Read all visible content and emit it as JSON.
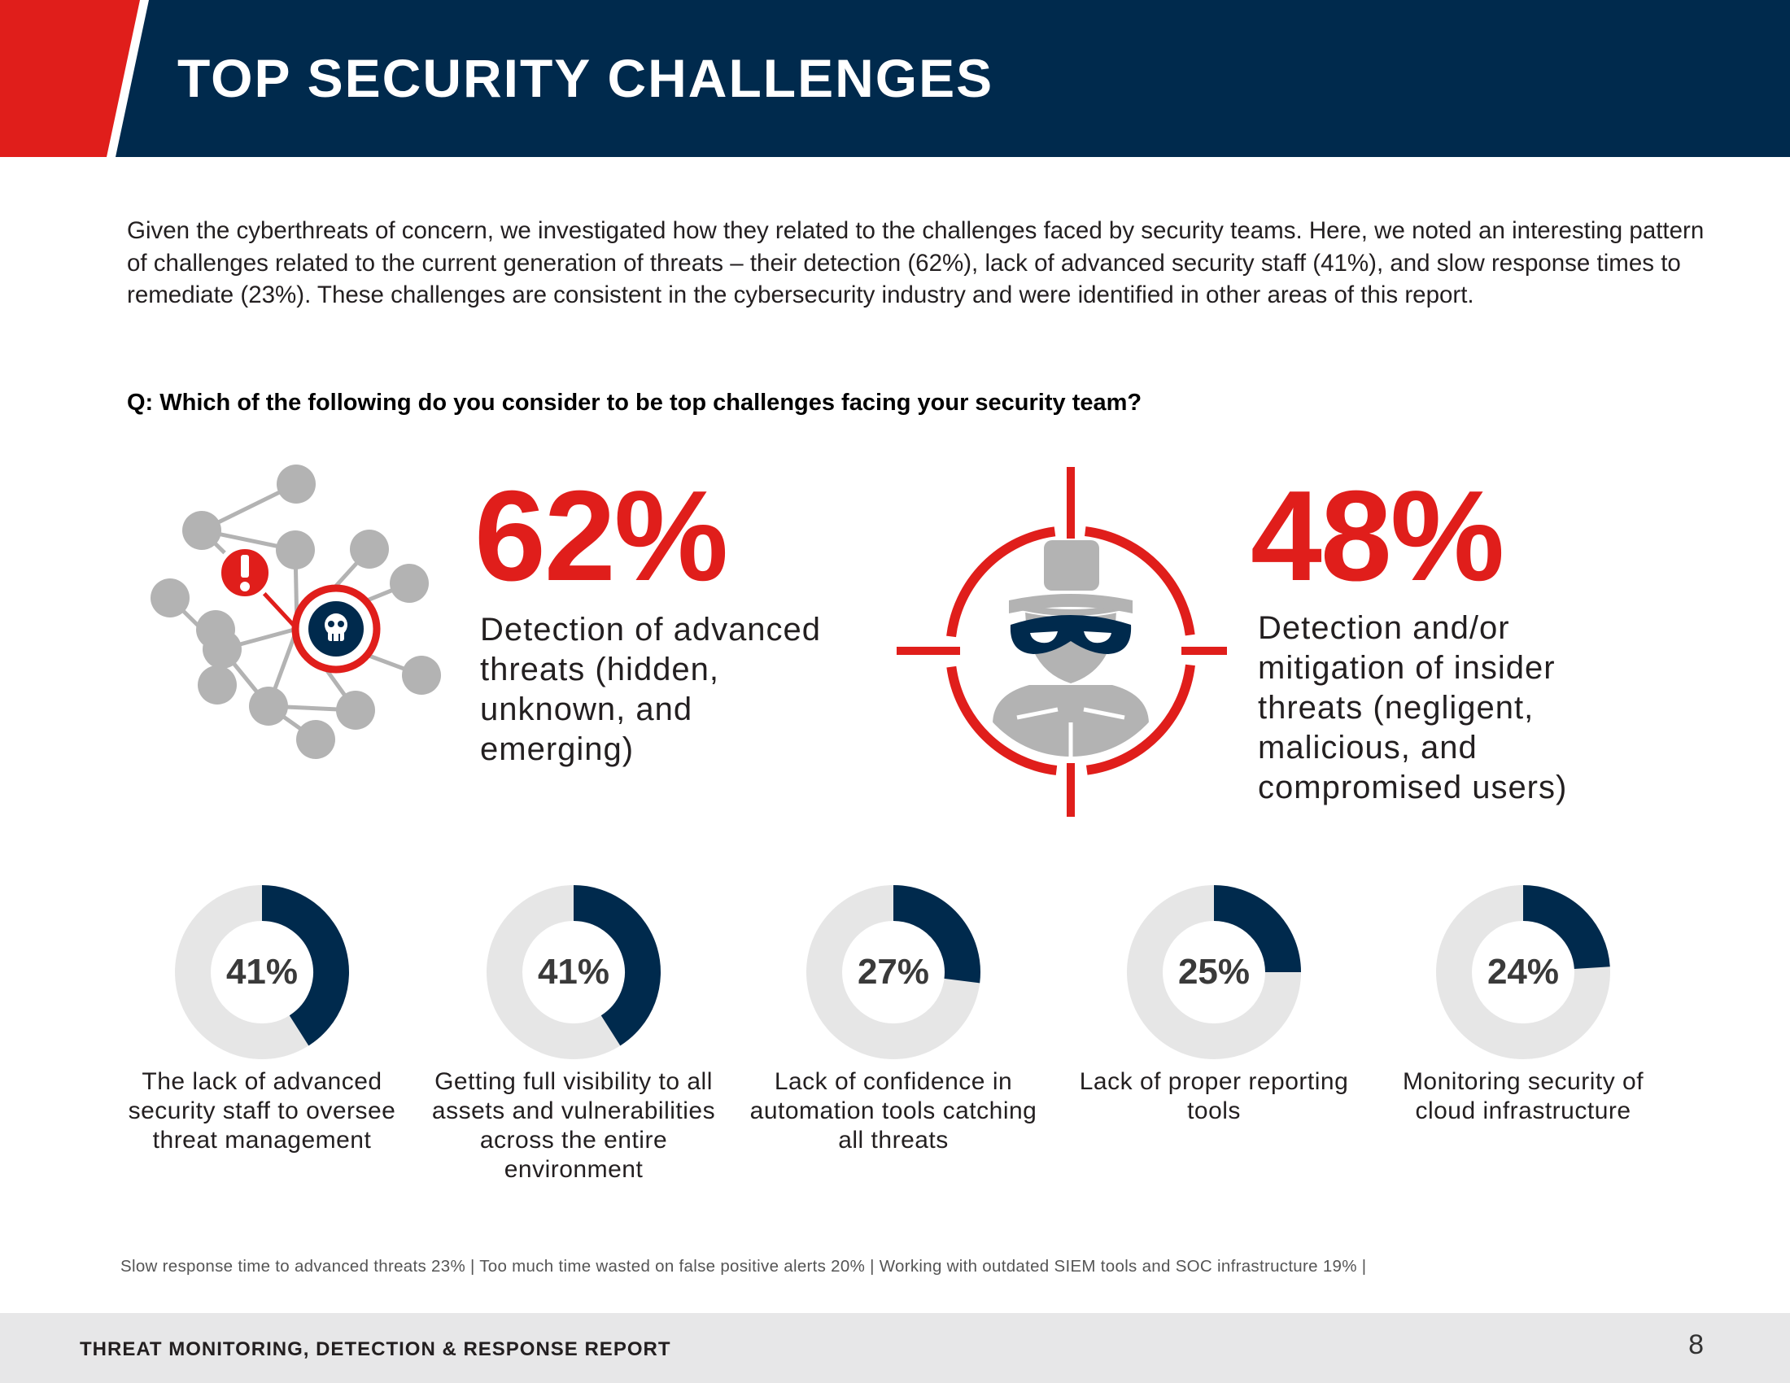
{
  "colors": {
    "navy": "#002a4d",
    "red": "#e01e1b",
    "gray": "#b3b3b3",
    "track": "#e6e6e6",
    "footer_bg": "#e7e7e8"
  },
  "header": {
    "title": "TOP SECURITY CHALLENGES"
  },
  "intro": "Given the cyberthreats of concern, we investigated how they related to the challenges faced by security teams. Here, we noted an interesting pattern of challenges related to the current generation of threats – their detection (62%), lack of advanced security staff (41%), and slow response times to remediate (23%). These challenges are consistent in the cybersecurity industry and were identified in other areas of this report.",
  "question": "Q: Which of the following do you consider to be top challenges facing your security team?",
  "highlights": [
    {
      "value_text": "62%",
      "label": "Detection of advanced threats (hidden, unknown, and emerging)",
      "icon": "network-threat-icon"
    },
    {
      "value_text": "48%",
      "label": "Detection and/or mitigation of insider threats (negligent, malicious, and compromised users)",
      "icon": "insider-target-icon"
    }
  ],
  "chart_data": {
    "type": "pie",
    "categories": [
      "Detection of advanced threats (hidden, unknown, and emerging)",
      "Detection and/or mitigation of insider threats (negligent, malicious, and compromised users)",
      "The lack of advanced security staff to oversee threat management",
      "Getting full visibility to all assets and vulnerabilities across the entire environment",
      "Lack of confidence in automation tools catching all threats",
      "Lack of proper reporting tools",
      "Monitoring security of cloud infrastructure",
      "Slow response time to advanced threats",
      "Too much time wasted on false positive alerts",
      "Working with outdated SIEM tools and SOC infrastructure"
    ],
    "values": [
      62,
      48,
      41,
      41,
      27,
      25,
      24,
      23,
      20,
      19
    ],
    "donuts": [
      {
        "value": 41,
        "value_text": "41%",
        "label": "The lack of advanced security staff to oversee threat management"
      },
      {
        "value": 41,
        "value_text": "41%",
        "label": "Getting full visibility to all assets and vulnerabilities across the entire environment"
      },
      {
        "value": 27,
        "value_text": "27%",
        "label": "Lack of confidence in automation tools catching all threats"
      },
      {
        "value": 25,
        "value_text": "25%",
        "label": "Lack of proper reporting tools"
      },
      {
        "value": 24,
        "value_text": "24%",
        "label": "Monitoring security of cloud infrastructure"
      }
    ]
  },
  "footnote": "Slow response time to advanced threats 23%  |  Too much time wasted on false positive alerts 20%  | Working with outdated SIEM tools and SOC infrastructure 19%  |",
  "footer": {
    "title": "THREAT MONITORING, DETECTION & RESPONSE REPORT",
    "page": "8"
  }
}
